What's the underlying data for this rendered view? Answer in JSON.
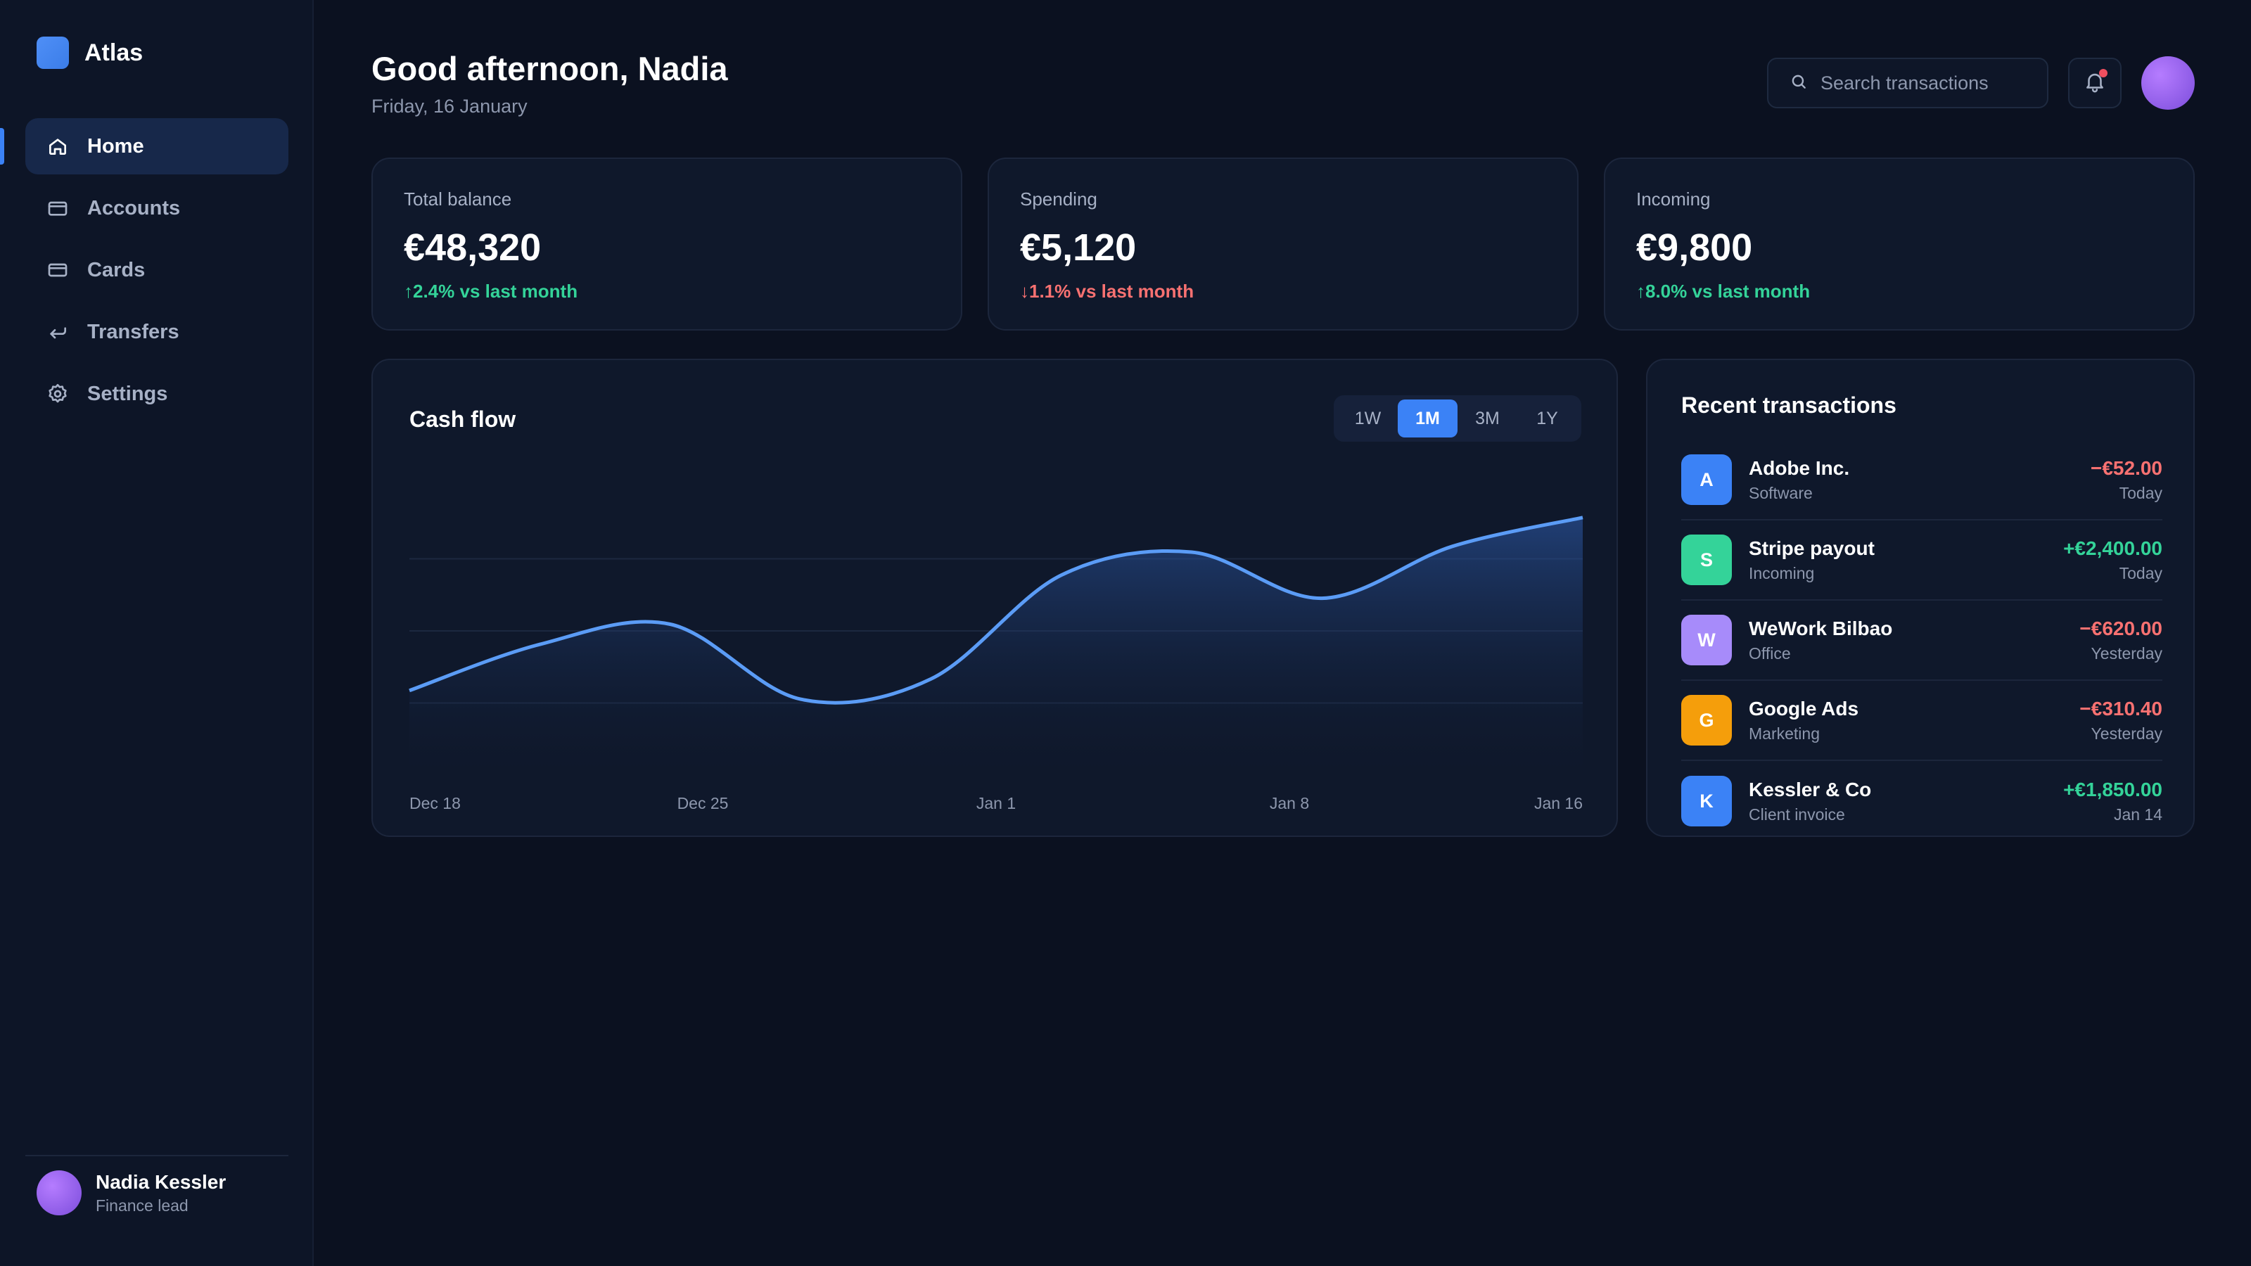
{
  "brand": {
    "name": "Atlas",
    "accent": "#3b82f6"
  },
  "nav": [
    {
      "label": "Home",
      "icon": "home-icon",
      "active": true
    },
    {
      "label": "Accounts",
      "icon": "wallet-icon",
      "active": false
    },
    {
      "label": "Cards",
      "icon": "card-icon",
      "active": false
    },
    {
      "label": "Transfers",
      "icon": "transfer-icon",
      "active": false
    },
    {
      "label": "Settings",
      "icon": "gear-icon",
      "active": false
    }
  ],
  "user": {
    "name": "Nadia Kessler",
    "role": "Finance lead"
  },
  "header": {
    "greeting": "Good afternoon, Nadia",
    "date": "Friday, 16 January",
    "search_placeholder": "Search transactions"
  },
  "stats": [
    {
      "label": "Total balance",
      "value": "€48,320",
      "change": "2.4% vs last month",
      "direction": "up"
    },
    {
      "label": "Spending",
      "value": "€5,120",
      "change": "1.1% vs last month",
      "direction": "down"
    },
    {
      "label": "Incoming",
      "value": "€9,800",
      "change": "8.0% vs last month",
      "direction": "up"
    }
  ],
  "cashflow": {
    "title": "Cash flow",
    "ranges": [
      "1W",
      "1M",
      "3M",
      "1Y"
    ],
    "selected_range": "1M"
  },
  "chart_data": {
    "type": "area",
    "x": [
      "Dec 18",
      "Dec 20",
      "Dec 22",
      "Dec 25",
      "Dec 28",
      "Jan 1",
      "Jan 4",
      "Jan 8",
      "Jan 12",
      "Jan 16"
    ],
    "tick_labels": [
      "Dec 18",
      "Dec 25",
      "Jan 1",
      "Jan 8",
      "Jan 16"
    ],
    "values": [
      0.22,
      0.38,
      0.45,
      0.19,
      0.26,
      0.62,
      0.7,
      0.54,
      0.72,
      0.82
    ],
    "ylim": [
      0,
      1
    ],
    "grid": true,
    "legend": "none",
    "line_color": "#5b9cf6"
  },
  "transactions": {
    "title": "Recent transactions",
    "items": [
      {
        "initial": "A",
        "name": "Adobe Inc.",
        "category": "Software",
        "amount": "−€52.00",
        "when": "Today",
        "direction": "down",
        "color": "#3b82f6"
      },
      {
        "initial": "S",
        "name": "Stripe payout",
        "category": "Incoming",
        "amount": "+€2,400.00",
        "when": "Today",
        "direction": "up",
        "color": "#34d399"
      },
      {
        "initial": "W",
        "name": "WeWork Bilbao",
        "category": "Office",
        "amount": "−€620.00",
        "when": "Yesterday",
        "direction": "down",
        "color": "#a78bfa"
      },
      {
        "initial": "G",
        "name": "Google Ads",
        "category": "Marketing",
        "amount": "−€310.40",
        "when": "Yesterday",
        "direction": "down",
        "color": "#f59e0b"
      },
      {
        "initial": "K",
        "name": "Kessler & Co",
        "category": "Client invoice",
        "amount": "+€1,850.00",
        "when": "Jan 14",
        "direction": "up",
        "color": "#3b82f6"
      }
    ]
  }
}
